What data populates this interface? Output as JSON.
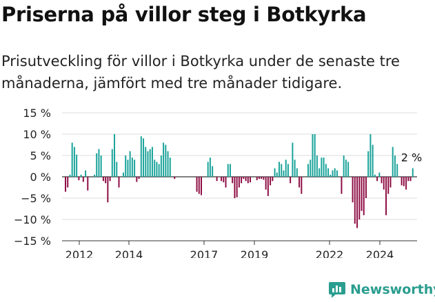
{
  "title": "Priserna på villor steg i Botkyrka",
  "subtitle": "Prisutveckling för villor i Botkyrka under de senaste tre månaderna, jämfört med tre månader tidigare.",
  "brand": "Newsworthy",
  "colors": {
    "positive": "#1aa39a",
    "negative": "#8e0d44",
    "axis": "#333333",
    "grid": "#dddddd",
    "brand": "#2a9d8f"
  },
  "chart_data": {
    "type": "bar",
    "unit": "%",
    "ylim": [
      -15,
      15
    ],
    "yticks": [
      "15 %",
      "10 %",
      "5 %",
      "0 %",
      "−5 %",
      "−10 %",
      "−15 %"
    ],
    "xticks": [
      "2012",
      "2014",
      "2017",
      "2019",
      "2022",
      "2024"
    ],
    "last_label": "2 %",
    "values": [
      -3.5,
      -2.5,
      0.5,
      8,
      7,
      5.2,
      -0.8,
      0.5,
      -1.2,
      1.5,
      -3.2,
      0,
      0,
      0.5,
      5.5,
      6.5,
      5,
      -1,
      -1.5,
      -6,
      -1,
      6.5,
      10,
      3.5,
      -2.5,
      0,
      1,
      5,
      4,
      6,
      4.5,
      4,
      -1.2,
      -0.5,
      9.5,
      9,
      7,
      6,
      6.5,
      7,
      4,
      3.5,
      3,
      5,
      8,
      7.5,
      6,
      4.5,
      0,
      -0.5,
      0,
      0,
      0,
      0,
      0,
      0,
      0,
      0,
      0,
      -3.5,
      -4,
      -4.3,
      0,
      0,
      3.5,
      4.5,
      2.5,
      0,
      -1,
      0,
      -1,
      -1.3,
      -2.5,
      3,
      3,
      -1.5,
      -5,
      -4.8,
      -2.5,
      -1.5,
      -0.5,
      -1,
      -1.5,
      -1.3,
      0,
      0,
      -0.8,
      -0.5,
      -0.5,
      -0.7,
      -3,
      -4.5,
      -2,
      -1,
      2,
      1,
      3.5,
      3,
      1.5,
      4,
      3,
      -1.5,
      8,
      4,
      2,
      -2.5,
      -4,
      0,
      0,
      3,
      4,
      10,
      10,
      5,
      2,
      4.5,
      4.5,
      3,
      2,
      0.5,
      1.5,
      2,
      1.5,
      0,
      -4,
      5,
      4,
      3.5,
      0,
      -6,
      -11,
      -12,
      -10,
      -8,
      -9,
      -5,
      6,
      10,
      7.5,
      0.5,
      -1,
      1,
      -1.5,
      -3,
      -9,
      -4,
      -2.5,
      7,
      5,
      3,
      0,
      -2,
      -2.2,
      -3,
      -1,
      -1,
      2
    ]
  }
}
